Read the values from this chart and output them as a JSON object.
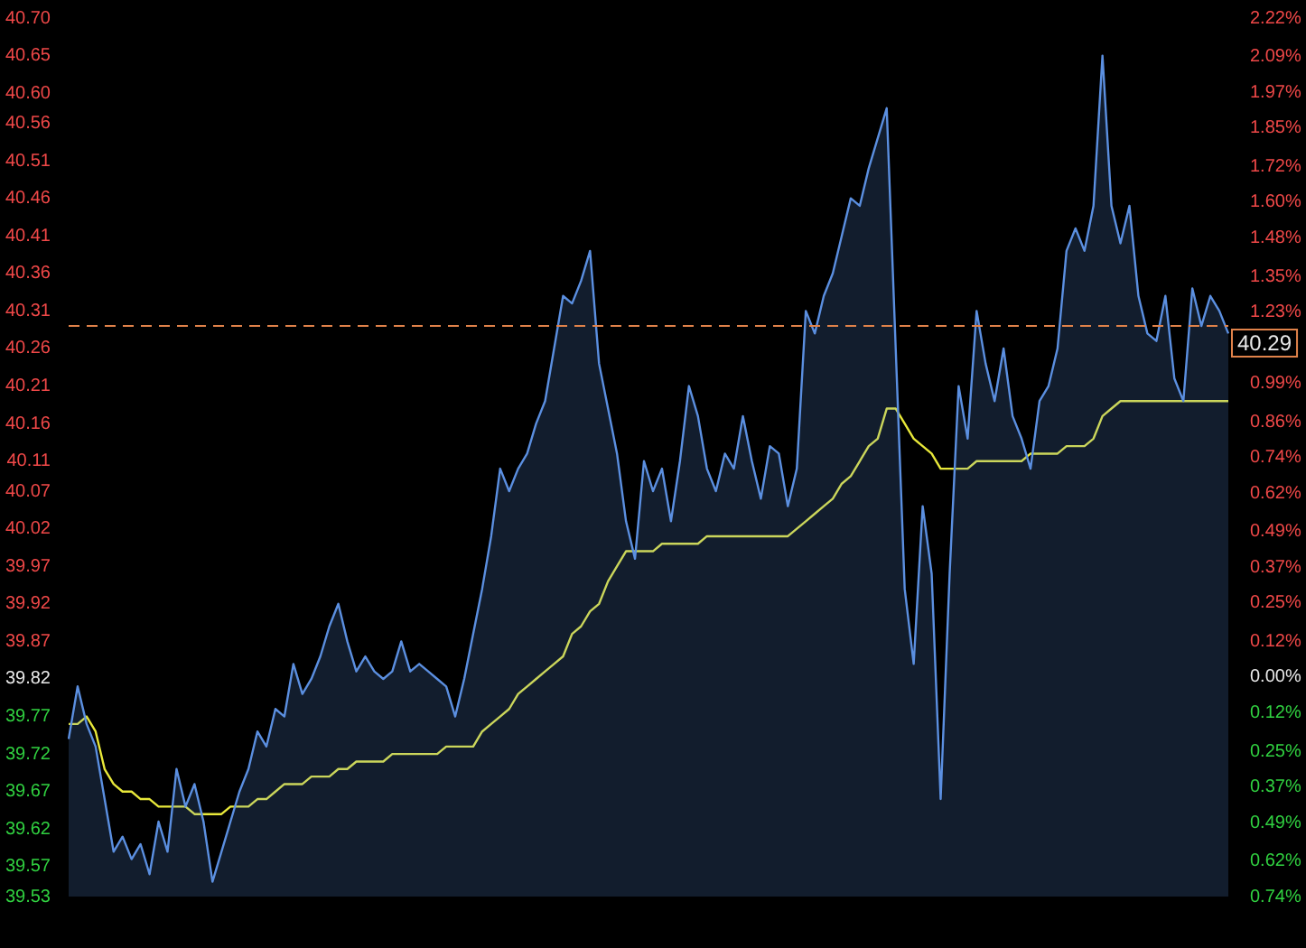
{
  "chart_data": {
    "type": "area",
    "categories": [
      null,
      null,
      null,
      null,
      null,
      null,
      null,
      null,
      null,
      null,
      null,
      null,
      null,
      null,
      null,
      null,
      null,
      null,
      null,
      null,
      null,
      null,
      null,
      null,
      null,
      null,
      null,
      null,
      null,
      null,
      null,
      null,
      null,
      null,
      null,
      null,
      null,
      null,
      null,
      null,
      null,
      null,
      null,
      null,
      null,
      null,
      null,
      null,
      null,
      null,
      null,
      null,
      null,
      null,
      null,
      null,
      null,
      null,
      null,
      null,
      null,
      null,
      null,
      null,
      null,
      null,
      null,
      null,
      null,
      null,
      null,
      null,
      null,
      null,
      null,
      null,
      null,
      null,
      null,
      null,
      null,
      null,
      null,
      null,
      null,
      null,
      null,
      null,
      null,
      null,
      null,
      null,
      null,
      null,
      null,
      null,
      null,
      null,
      null,
      null,
      null,
      null,
      null,
      null,
      null,
      null,
      null,
      null,
      null,
      null,
      null,
      null,
      null,
      null,
      null,
      null,
      null,
      null,
      null,
      null,
      null,
      null,
      null,
      null,
      null,
      null,
      null,
      null,
      null,
      null
    ],
    "series": [
      {
        "type": "area",
        "color": "#5b8fe0",
        "values": [
          39.74,
          39.81,
          39.76,
          39.73,
          39.66,
          39.59,
          39.61,
          39.58,
          39.6,
          39.56,
          39.63,
          39.59,
          39.7,
          39.65,
          39.68,
          39.63,
          39.55,
          39.59,
          39.63,
          39.67,
          39.7,
          39.75,
          39.73,
          39.78,
          39.77,
          39.84,
          39.8,
          39.82,
          39.85,
          39.89,
          39.92,
          39.87,
          39.83,
          39.85,
          39.83,
          39.82,
          39.83,
          39.87,
          39.83,
          39.84,
          39.83,
          39.82,
          39.81,
          39.77,
          39.82,
          39.88,
          39.94,
          40.01,
          40.1,
          40.07,
          40.1,
          40.12,
          40.16,
          40.19,
          40.26,
          40.33,
          40.32,
          40.35,
          40.39,
          40.24,
          40.18,
          40.12,
          40.03,
          39.98,
          40.11,
          40.07,
          40.1,
          40.03,
          40.11,
          40.21,
          40.17,
          40.1,
          40.07,
          40.12,
          40.1,
          40.17,
          40.11,
          40.06,
          40.13,
          40.12,
          40.05,
          40.1,
          40.31,
          40.28,
          40.33,
          40.36,
          40.41,
          40.46,
          40.45,
          40.5,
          40.54,
          40.58,
          40.26,
          39.94,
          39.84,
          40.05,
          39.96,
          39.66,
          39.96,
          40.21,
          40.14,
          40.31,
          40.24,
          40.19,
          40.26,
          40.17,
          40.14,
          40.1,
          40.19,
          40.21,
          40.26,
          40.39,
          40.42,
          40.39,
          40.45,
          40.65,
          40.45,
          40.4,
          40.45,
          40.33,
          40.28,
          40.27,
          40.33,
          40.22,
          40.19,
          40.34,
          40.29,
          40.33,
          40.31,
          40.28
        ]
      },
      {
        "type": "line",
        "color": "#e8e83a",
        "values": [
          39.76,
          39.76,
          39.77,
          39.75,
          39.7,
          39.68,
          39.67,
          39.67,
          39.66,
          39.66,
          39.65,
          39.65,
          39.65,
          39.65,
          39.64,
          39.64,
          39.64,
          39.64,
          39.65,
          39.65,
          39.65,
          39.66,
          39.66,
          39.67,
          39.68,
          39.68,
          39.68,
          39.69,
          39.69,
          39.69,
          39.7,
          39.7,
          39.71,
          39.71,
          39.71,
          39.71,
          39.72,
          39.72,
          39.72,
          39.72,
          39.72,
          39.72,
          39.73,
          39.73,
          39.73,
          39.73,
          39.75,
          39.76,
          39.77,
          39.78,
          39.8,
          39.81,
          39.82,
          39.83,
          39.84,
          39.85,
          39.88,
          39.89,
          39.91,
          39.92,
          39.95,
          39.97,
          39.99,
          39.99,
          39.99,
          39.99,
          40.0,
          40.0,
          40.0,
          40.0,
          40.0,
          40.01,
          40.01,
          40.01,
          40.01,
          40.01,
          40.01,
          40.01,
          40.01,
          40.01,
          40.01,
          40.02,
          40.03,
          40.04,
          40.05,
          40.06,
          40.08,
          40.09,
          40.11,
          40.13,
          40.14,
          40.18,
          40.18,
          40.16,
          40.14,
          40.13,
          40.12,
          40.1,
          40.1,
          40.1,
          40.1,
          40.11,
          40.11,
          40.11,
          40.11,
          40.11,
          40.11,
          40.12,
          40.12,
          40.12,
          40.12,
          40.13,
          40.13,
          40.13,
          40.14,
          40.17,
          40.18,
          40.19,
          40.19,
          40.19,
          40.19,
          40.19,
          40.19,
          40.19,
          40.19,
          40.19,
          40.19,
          40.19,
          40.19,
          40.19
        ]
      }
    ],
    "ylim": [
      39.53,
      40.7
    ],
    "yticks": [
      {
        "value": 40.7,
        "label": "40.70"
      },
      {
        "value": 40.65,
        "label": "40.65"
      },
      {
        "value": 40.6,
        "label": "40.60"
      },
      {
        "value": 40.56,
        "label": "40.56"
      },
      {
        "value": 40.51,
        "label": "40.51"
      },
      {
        "value": 40.46,
        "label": "40.46"
      },
      {
        "value": 40.41,
        "label": "40.41"
      },
      {
        "value": 40.36,
        "label": "40.36"
      },
      {
        "value": 40.31,
        "label": "40.31"
      },
      {
        "value": 40.26,
        "label": "40.26"
      },
      {
        "value": 40.21,
        "label": "40.21"
      },
      {
        "value": 40.16,
        "label": "40.16"
      },
      {
        "value": 40.11,
        "label": "40.11"
      },
      {
        "value": 40.07,
        "label": "40.07"
      },
      {
        "value": 40.02,
        "label": "40.02"
      },
      {
        "value": 39.97,
        "label": "39.97"
      },
      {
        "value": 39.92,
        "label": "39.92"
      },
      {
        "value": 39.87,
        "label": "39.87"
      },
      {
        "value": 39.82,
        "label": "39.82"
      },
      {
        "value": 39.77,
        "label": "39.77"
      },
      {
        "value": 39.72,
        "label": "39.72"
      },
      {
        "value": 39.67,
        "label": "39.67"
      },
      {
        "value": 39.62,
        "label": "39.62"
      },
      {
        "value": 39.57,
        "label": "39.57"
      },
      {
        "value": 39.53,
        "label": "39.53"
      }
    ],
    "y2lim": [
      -0.74,
      2.22
    ],
    "y2ticks": [
      {
        "value": 2.22,
        "label": "2.22%"
      },
      {
        "value": 2.09,
        "label": "2.09%"
      },
      {
        "value": 1.97,
        "label": "1.97%"
      },
      {
        "value": 1.85,
        "label": "1.85%"
      },
      {
        "value": 1.72,
        "label": "1.72%"
      },
      {
        "value": 1.6,
        "label": "1.60%"
      },
      {
        "value": 1.48,
        "label": "1.48%"
      },
      {
        "value": 1.35,
        "label": "1.35%"
      },
      {
        "value": 1.23,
        "label": "1.23%"
      },
      {
        "value": 0.99,
        "label": "0.99%"
      },
      {
        "value": 0.86,
        "label": "0.86%"
      },
      {
        "value": 0.74,
        "label": "0.74%"
      },
      {
        "value": 0.62,
        "label": "0.62%"
      },
      {
        "value": 0.49,
        "label": "0.49%"
      },
      {
        "value": 0.37,
        "label": "0.37%"
      },
      {
        "value": 0.25,
        "label": "0.25%"
      },
      {
        "value": 0.12,
        "label": "0.12%"
      },
      {
        "value": 0,
        "label": "0.00%"
      },
      {
        "value": -0.12,
        "label": "0.12%"
      },
      {
        "value": -0.25,
        "label": "0.25%"
      },
      {
        "value": -0.37,
        "label": "0.37%"
      },
      {
        "value": -0.49,
        "label": "0.49%"
      },
      {
        "value": -0.62,
        "label": "0.62%"
      },
      {
        "value": -0.74,
        "label": "0.74%"
      }
    ],
    "ref_lines": [
      {
        "axis": "y",
        "value": 40.29,
        "label": "40.29",
        "color": "#e0824a",
        "line_style": "dashed"
      }
    ]
  }
}
